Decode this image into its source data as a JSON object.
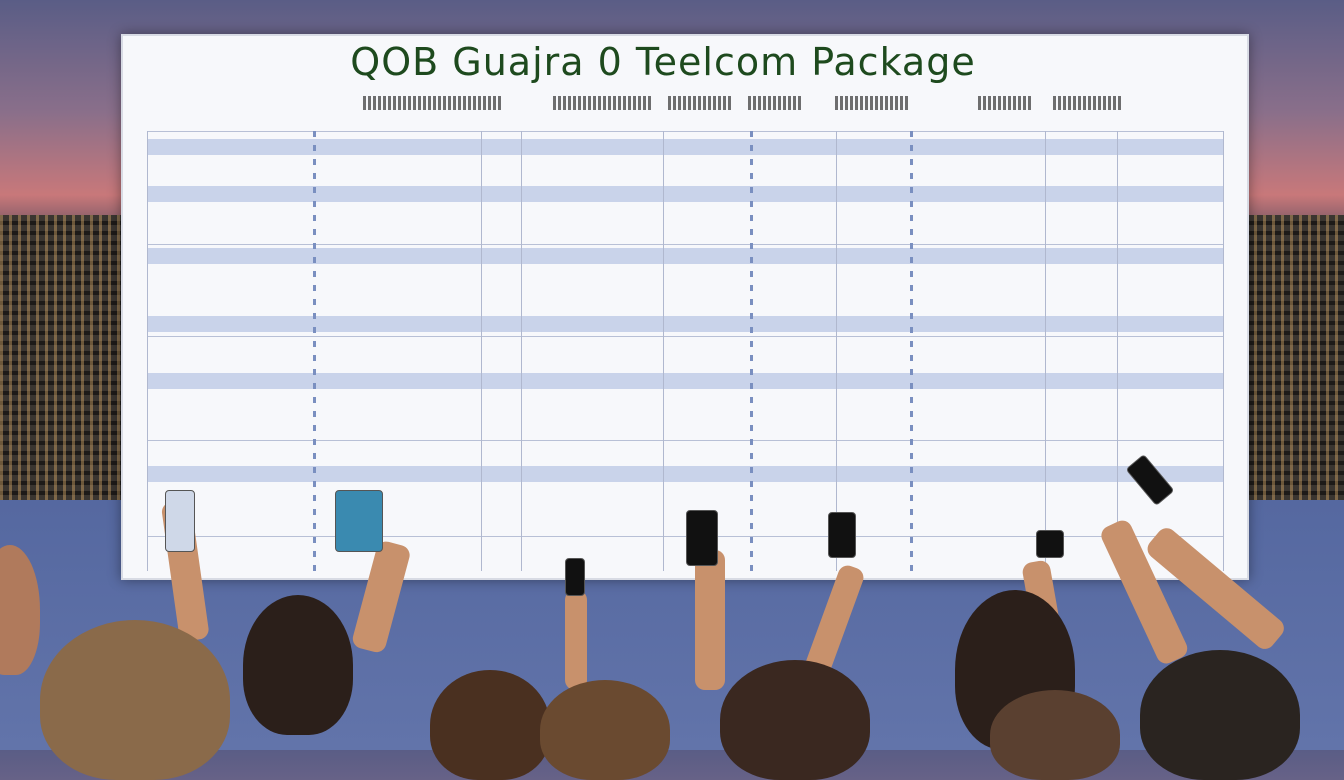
{
  "screen": {
    "title": "QOB Guajra 0 Teelcom Package"
  },
  "colors": {
    "title": "#1e4a1e",
    "table_band": "#c9d3ea",
    "sky_top": "#5a5d86",
    "sunset": "#c8787a"
  }
}
